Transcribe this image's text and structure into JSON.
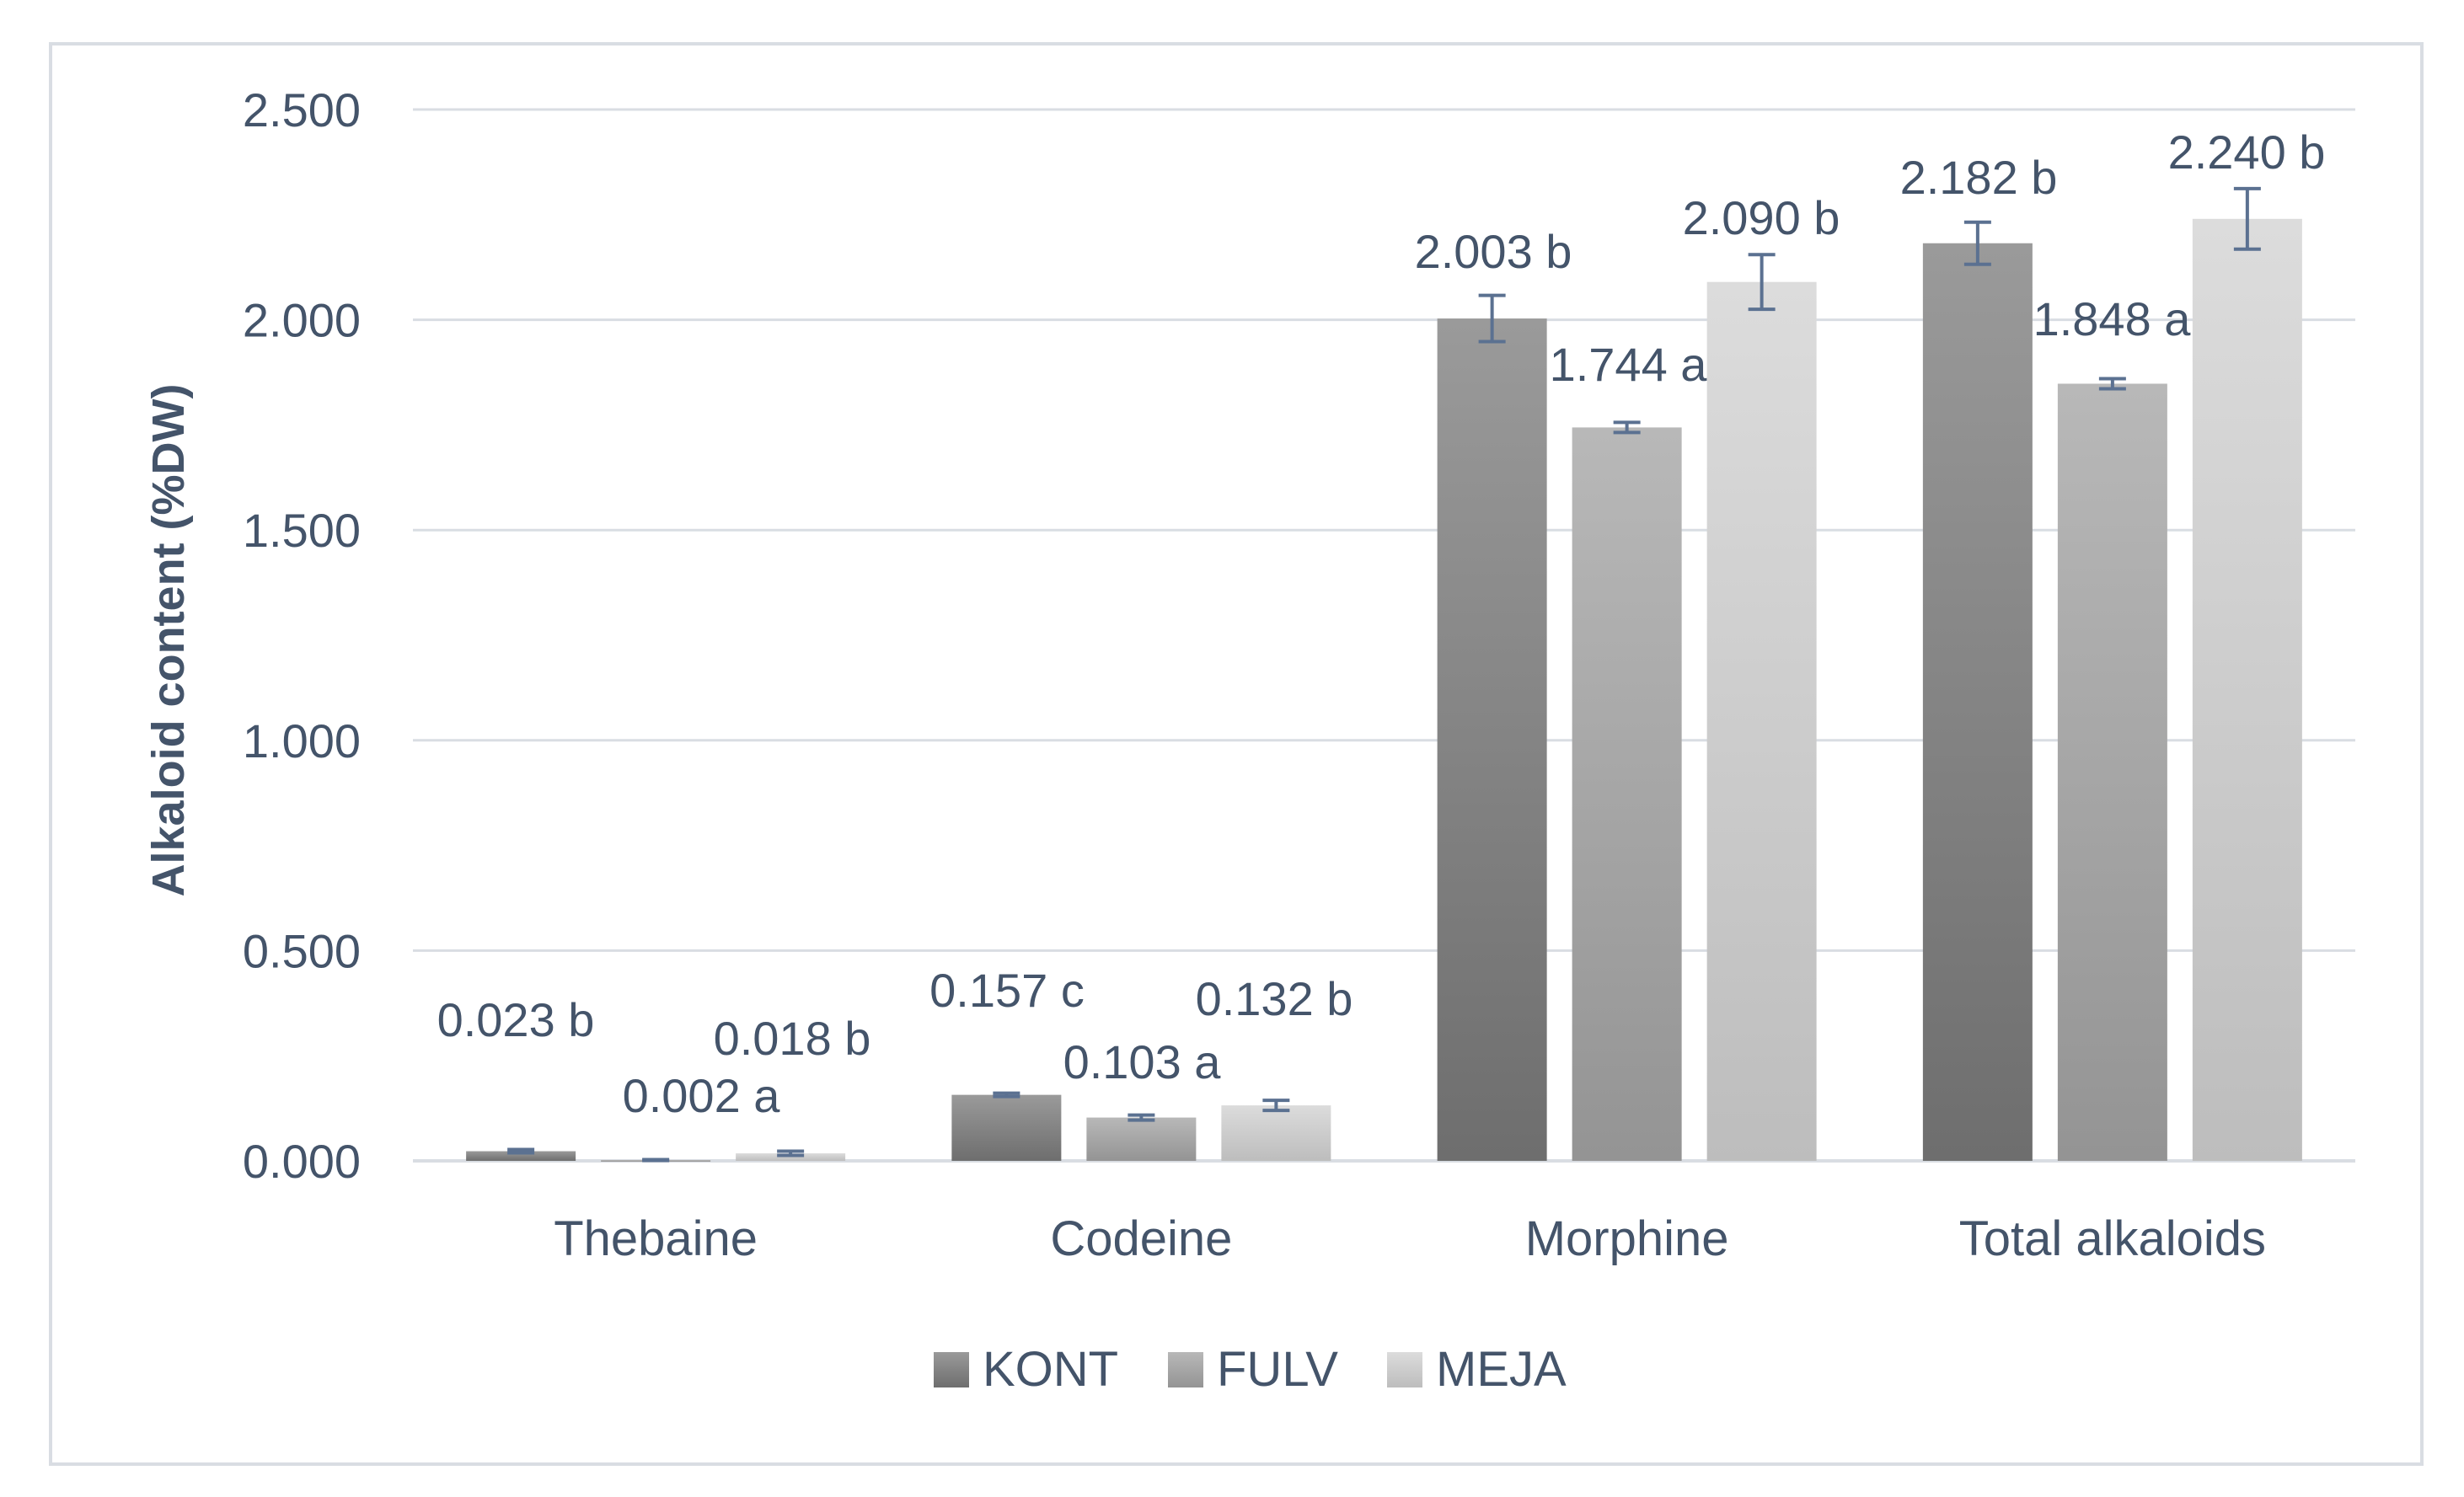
{
  "chart_data": {
    "type": "bar",
    "ylabel": "Alkaloid content (%DW)",
    "ylim": [
      0,
      2.5
    ],
    "yticks": [
      "0.000",
      "0.500",
      "1.000",
      "1.500",
      "2.000",
      "2.500"
    ],
    "ytick_values": [
      0,
      0.5,
      1.0,
      1.5,
      2.0,
      2.5
    ],
    "categories": [
      "Thebaine",
      "Codeine",
      "Morphine",
      "Total alkaloids"
    ],
    "grid": true,
    "legend_position": "bottom",
    "series": [
      {
        "name": "KONT",
        "color": "#7f7f7f",
        "values": [
          0.023,
          0.157,
          2.003,
          2.182
        ],
        "errors": [
          0.004,
          0.004,
          0.055,
          0.05
        ],
        "labels": [
          "0.023 b",
          "0.157 c",
          "2.003 b",
          "2.182 b"
        ]
      },
      {
        "name": "FULV",
        "color": "#a6a6a6",
        "values": [
          0.002,
          0.103,
          1.744,
          1.848
        ],
        "errors": [
          0.001,
          0.006,
          0.012,
          0.012
        ],
        "labels": [
          "0.002 a",
          "0.103 a",
          "1.744 a",
          "1.848 a"
        ]
      },
      {
        "name": "MEJA",
        "color": "#d0d0d0",
        "values": [
          0.018,
          0.132,
          2.09,
          2.24
        ],
        "errors": [
          0.005,
          0.012,
          0.065,
          0.072
        ],
        "labels": [
          "0.018 b",
          "0.132 b",
          "2.090 b",
          "2.240 b"
        ]
      }
    ],
    "error_bar_color": "#5b7191",
    "axis_color": "#d9dde3",
    "text_color": "#44546a"
  }
}
